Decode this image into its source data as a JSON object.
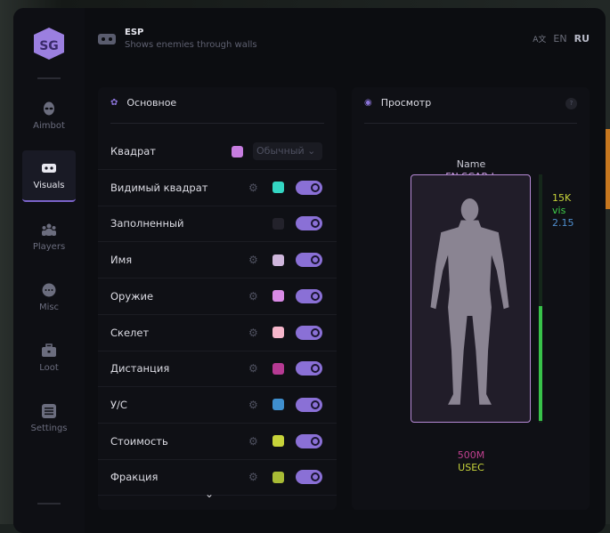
{
  "header": {
    "title": "ESP",
    "subtitle": "Shows enemies through walls",
    "icon": "vr-headset-icon"
  },
  "language": {
    "en": "EN",
    "ru": "RU",
    "active": "RU",
    "icon": "translate-icon"
  },
  "sidebar": {
    "items": [
      {
        "label": "Aimbot",
        "icon": "alien-icon"
      },
      {
        "label": "Visuals",
        "icon": "vr-headset-icon",
        "active": true
      },
      {
        "label": "Players",
        "icon": "users-icon"
      },
      {
        "label": "Misc",
        "icon": "dots-icon"
      },
      {
        "label": "Loot",
        "icon": "briefcase-icon"
      },
      {
        "label": "Settings",
        "icon": "list-icon"
      }
    ]
  },
  "main_panel": {
    "title": "Основное",
    "rows": [
      {
        "label": "Квадрат",
        "color": "#c77de0",
        "dropdown": "Обычный"
      },
      {
        "label": "Видимый квадрат",
        "color": "#34d6c3",
        "gear": true,
        "enabled": true
      },
      {
        "label": "Заполненный",
        "color": "#23222b",
        "enabled": true
      },
      {
        "label": "Имя",
        "color": "#cfb6dc",
        "gear": true,
        "enabled": true
      },
      {
        "label": "Оружие",
        "color": "#d98ae6",
        "gear": true,
        "enabled": true
      },
      {
        "label": "Скелет",
        "color": "#f6b6cb",
        "gear": true,
        "enabled": true
      },
      {
        "label": "Дистанция",
        "color": "#b63a93",
        "gear": true,
        "enabled": true
      },
      {
        "label": "У/С",
        "color": "#3f8fcf",
        "gear": true,
        "enabled": true
      },
      {
        "label": "Стоимость",
        "color": "#c7d33a",
        "gear": true,
        "enabled": true
      },
      {
        "label": "Фракция",
        "color": "#a8bb35",
        "gear": true,
        "enabled": true
      }
    ]
  },
  "preview": {
    "title": "Просмотр",
    "help": "?",
    "name": "Name",
    "weapon": "FN SCAR-L",
    "value": "15K",
    "visible": "vis",
    "kd": "2.15",
    "distance": "500M",
    "faction": "USEC",
    "health_fraction": 0.47,
    "colors": {
      "name": "#c9c9d4",
      "weapon": "#c99ae0",
      "value": "#c7d33a",
      "visible": "#3fcf4a",
      "kd": "#4f8fcf",
      "distance": "#c0408f",
      "faction": "#c7d33a",
      "box": "#b68ad6"
    }
  }
}
